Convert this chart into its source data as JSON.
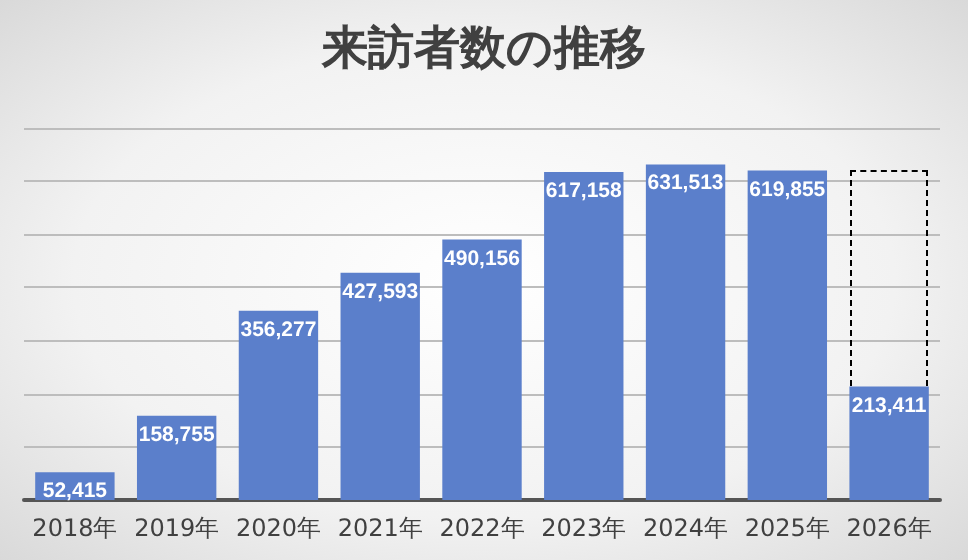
{
  "chart_data": {
    "type": "bar",
    "title": "来訪者数の推移",
    "categories": [
      "2018年",
      "2019年",
      "2020年",
      "2021年",
      "2022年",
      "2023年",
      "2024年",
      "2025年",
      "2026年"
    ],
    "values": [
      52415,
      158755,
      356277,
      427593,
      490156,
      617158,
      631513,
      619855,
      213411
    ],
    "value_labels": [
      "52,415",
      "158,755",
      "356,277",
      "427,593",
      "490,156",
      "617,158",
      "631,513",
      "619,855",
      "213,411"
    ],
    "color": "#5b7fcb",
    "grid": "y",
    "tick_labels": "x"
  }
}
